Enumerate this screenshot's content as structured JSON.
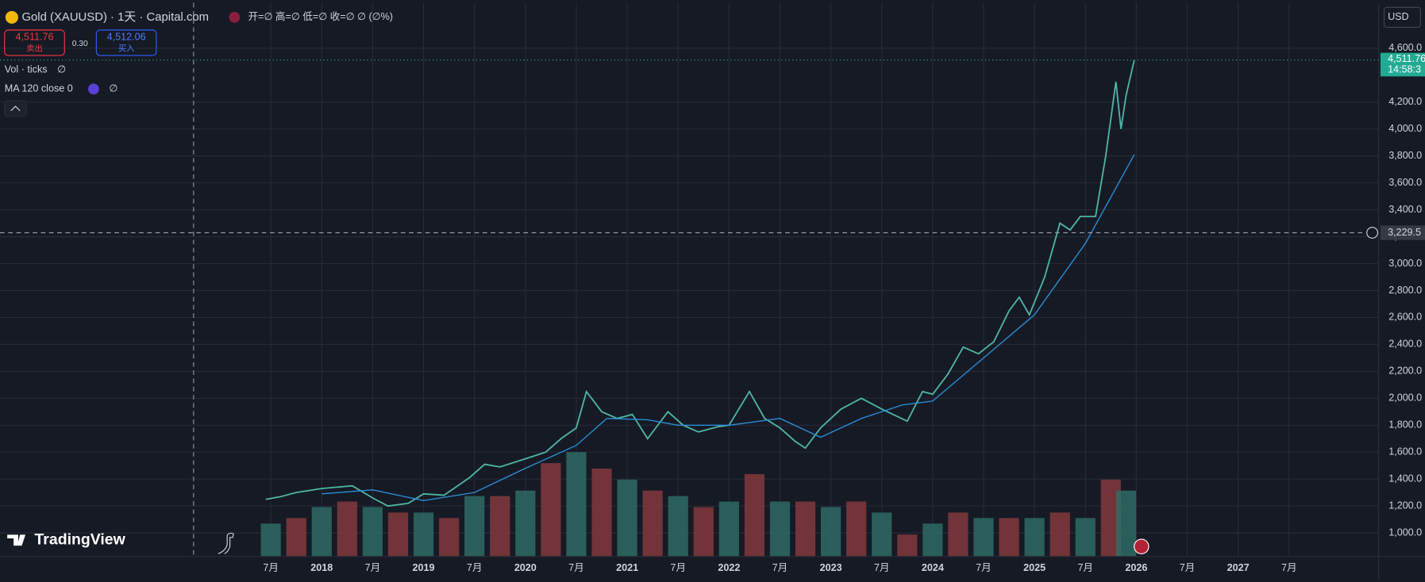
{
  "chart_data": {
    "type": "line",
    "title": "Gold (XAUUSD) · 1天 · Capital.com",
    "ohlc": "开=∅ 高=∅ 低=∅ 收=∅ ∅ (∅%)",
    "sell": {
      "price": "4,511.76",
      "label": "卖出"
    },
    "spread": "0.30",
    "buy": {
      "price": "4,512.06",
      "label": "买入"
    },
    "brand": "TradingView",
    "currency": "USD",
    "last_price_label": "4,511.76",
    "countdown": "14:58:3",
    "crosshair": {
      "value": 3229.5,
      "label": "3,229.5"
    },
    "xlim": [
      2014.84,
      2028.38
    ],
    "ylim": [
      825,
      4937
    ],
    "xticks": [
      {
        "value": 2017.5,
        "label": "7月"
      },
      2018,
      {
        "value": 2018.5,
        "label": "7月"
      },
      2019,
      {
        "value": 2019.5,
        "label": "7月"
      },
      2020,
      {
        "value": 2020.5,
        "label": "7月"
      },
      2021,
      {
        "value": 2021.5,
        "label": "7月"
      },
      2022,
      {
        "value": 2022.5,
        "label": "7月"
      },
      2023,
      {
        "value": 2023.5,
        "label": "7月"
      },
      2024,
      {
        "value": 2024.5,
        "label": "7月"
      },
      2025,
      {
        "value": 2025.5,
        "label": "7月"
      },
      2026,
      {
        "value": 2026.5,
        "label": "7月"
      },
      2027,
      {
        "value": 2027.5,
        "label": "7月"
      }
    ],
    "yticks": [
      {
        "value": 1000,
        "label": "1,000.0"
      },
      {
        "value": 1200,
        "label": "1,200.0"
      },
      {
        "value": 1400,
        "label": "1,400.0"
      },
      {
        "value": 1600,
        "label": "1,600.0"
      },
      {
        "value": 1800,
        "label": "1,800.0"
      },
      {
        "value": 2000,
        "label": "2,000.0"
      },
      {
        "value": 2200,
        "label": "2,200.0"
      },
      {
        "value": 2400,
        "label": "2,400.0"
      },
      {
        "value": 2600,
        "label": "2,600.0"
      },
      {
        "value": 2800,
        "label": "2,800.0"
      },
      {
        "value": 3000,
        "label": "3,000.0"
      },
      {
        "value": 3200,
        "label": "3,200.0"
      },
      {
        "value": 3400,
        "label": "3,400.0"
      },
      {
        "value": 3600,
        "label": "3,600.0"
      },
      {
        "value": 3800,
        "label": "3,800.0"
      },
      {
        "value": 4000,
        "label": "4,000.0"
      },
      {
        "value": 4200,
        "label": "4,200.0"
      },
      {
        "value": 4600,
        "label": "4,600.0"
      }
    ],
    "grid": true,
    "series": [
      {
        "color": "#4db6a4",
        "x": [
          2017.45,
          2017.6,
          2017.75,
          2018.0,
          2018.15,
          2018.3,
          2018.5,
          2018.65,
          2018.85,
          2019.0,
          2019.2,
          2019.45,
          2019.6,
          2019.75,
          2020.0,
          2020.2,
          2020.35,
          2020.5,
          2020.6,
          2020.75,
          2020.9,
          2021.05,
          2021.2,
          2021.4,
          2021.55,
          2021.7,
          2021.9,
          2022.0,
          2022.2,
          2022.35,
          2022.5,
          2022.65,
          2022.75,
          2022.9,
          2023.1,
          2023.3,
          2023.5,
          2023.75,
          2023.9,
          2024.0,
          2024.15,
          2024.3,
          2024.45,
          2024.6,
          2024.75,
          2024.85,
          2024.95,
          2025.1,
          2025.25,
          2025.35,
          2025.45,
          2025.6,
          2025.7,
          2025.8,
          2025.85,
          2025.9,
          2025.98
        ],
        "values": [
          1250,
          1270,
          1300,
          1330,
          1340,
          1350,
          1260,
          1200,
          1220,
          1290,
          1280,
          1410,
          1510,
          1490,
          1550,
          1600,
          1700,
          1780,
          2050,
          1900,
          1850,
          1880,
          1700,
          1900,
          1800,
          1750,
          1790,
          1800,
          2050,
          1850,
          1780,
          1680,
          1630,
          1780,
          1920,
          2000,
          1920,
          1830,
          2050,
          2030,
          2180,
          2380,
          2330,
          2420,
          2650,
          2750,
          2620,
          2900,
          3300,
          3250,
          3350,
          3350,
          3800,
          4350,
          4000,
          4250,
          4511.76
        ]
      },
      {
        "name": "MA 120 close 0",
        "status": "∅",
        "color": "#2a8fd8",
        "x": [
          2018.0,
          2018.5,
          2019.0,
          2019.5,
          2020.0,
          2020.5,
          2020.8,
          2021.2,
          2021.5,
          2022.0,
          2022.5,
          2022.9,
          2023.3,
          2023.7,
          2024.0,
          2024.5,
          2025.0,
          2025.5,
          2025.98
        ],
        "values": [
          1290,
          1320,
          1240,
          1300,
          1480,
          1650,
          1850,
          1840,
          1800,
          1800,
          1850,
          1710,
          1850,
          1950,
          1980,
          2300,
          2620,
          3150,
          3810
        ]
      }
    ],
    "volume": {
      "name": "Vol · ticks",
      "status": "∅",
      "up_color": "#2f6f68",
      "down_color": "#8a3b3d",
      "x": [
        2017.5,
        2017.75,
        2018.0,
        2018.25,
        2018.5,
        2018.75,
        2019.0,
        2019.25,
        2019.5,
        2019.75,
        2020.0,
        2020.25,
        2020.5,
        2020.75,
        2021.0,
        2021.25,
        2021.5,
        2021.75,
        2022.0,
        2022.25,
        2022.5,
        2022.75,
        2023.0,
        2023.25,
        2023.5,
        2023.75,
        2024.0,
        2024.25,
        2024.5,
        2024.75,
        2025.0,
        2025.25,
        2025.5,
        2025.75,
        2025.9
      ],
      "values": [
        30,
        35,
        45,
        50,
        45,
        40,
        40,
        35,
        55,
        55,
        60,
        85,
        95,
        80,
        70,
        60,
        55,
        45,
        50,
        75,
        50,
        50,
        45,
        50,
        40,
        20,
        30,
        40,
        35,
        35,
        35,
        40,
        35,
        70,
        60
      ]
    }
  }
}
